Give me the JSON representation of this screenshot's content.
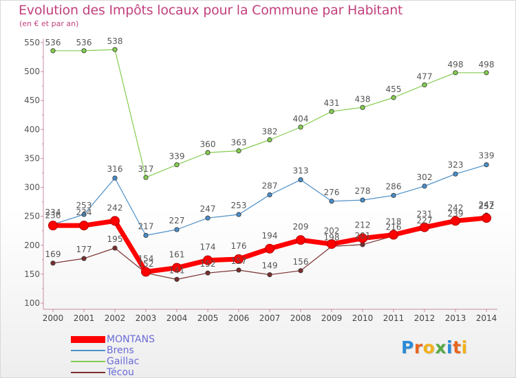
{
  "title": "Evolution des Impôts locaux pour la Commune par Habitant",
  "subtitle": "(en € et par an)",
  "logo": {
    "letters": [
      "P",
      "r",
      "o",
      "x",
      "i",
      "t",
      "i"
    ],
    "colors": [
      "#2b8ad8",
      "#e8651f",
      "#f2b21b",
      "#56a942",
      "#2b8ad8",
      "#e8651f",
      "#f2b21b"
    ]
  },
  "chart_data": {
    "type": "line",
    "title": "Evolution des Impôts locaux pour la Commune par Habitant",
    "subtitle": "(en € et par an)",
    "xlabel": "",
    "ylabel": "",
    "ylim": [
      100,
      550
    ],
    "yticks": [
      100,
      150,
      200,
      250,
      300,
      350,
      400,
      450,
      500,
      550
    ],
    "x": [
      "2000",
      "2001",
      "2002",
      "2003",
      "2004",
      "2005",
      "2006",
      "2007",
      "2008",
      "2009",
      "2010",
      "2011",
      "2012",
      "2013",
      "2014"
    ],
    "grid": false,
    "legend_position": "bottom-left",
    "series": [
      {
        "name": "Técou",
        "color": "#7a2e2e",
        "values": [
          169,
          177,
          195,
          152,
          141,
          152,
          157,
          149,
          156,
          198,
          201,
          216,
          227,
          239,
          252
        ],
        "labels": [
          "169",
          "177",
          "195",
          "152",
          "141",
          "152",
          "157",
          "149",
          "156",
          "198",
          "201",
          "216",
          "227",
          "239",
          "252"
        ]
      },
      {
        "name": "Gaillac",
        "color": "#84cc4e",
        "values": [
          536,
          536,
          538,
          317,
          339,
          360,
          363,
          382,
          404,
          431,
          438,
          455,
          477,
          498,
          498
        ],
        "labels": [
          "536",
          "536",
          "538",
          "317",
          "339",
          "360",
          "363",
          "382",
          "404",
          "431",
          "438",
          "455",
          "477",
          "498",
          "498"
        ]
      },
      {
        "name": "Brens",
        "color": "#4a8ec8",
        "values": [
          236,
          253,
          316,
          217,
          227,
          247,
          253,
          287,
          313,
          276,
          278,
          286,
          302,
          323,
          339
        ],
        "labels": [
          "236",
          "253",
          "316",
          "217",
          "227",
          "247",
          "253",
          "287",
          "313",
          "276",
          "278",
          "286",
          "302",
          "323",
          "339"
        ]
      },
      {
        "name": "MONTANS",
        "color": "#ff0000",
        "values": [
          234,
          234,
          242,
          154,
          161,
          174,
          176,
          194,
          209,
          202,
          212,
          218,
          231,
          242,
          247
        ],
        "labels": [
          "234",
          "234",
          "242",
          "154",
          "161",
          "174",
          "176",
          "194",
          "209",
          "202",
          "212",
          "218",
          "231",
          "242",
          "247"
        ]
      }
    ],
    "legend": [
      "MONTANS",
      "Brens",
      "Gaillac",
      "Técou"
    ]
  }
}
